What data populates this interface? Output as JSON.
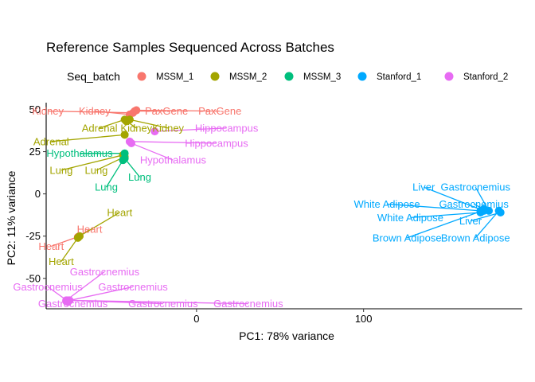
{
  "chart_data": {
    "type": "scatter",
    "title": "Reference Samples Sequenced Across Batches",
    "xlabel": "PC1: 78% variance",
    "ylabel": "PC2: 11% variance",
    "xlim": [
      -90,
      195
    ],
    "ylim": [
      -68,
      54
    ],
    "xticks": [
      0,
      100
    ],
    "yticks": [
      50,
      25,
      0,
      -25,
      -50
    ],
    "legend": {
      "title": "Seq_batch",
      "position": "top"
    },
    "grid": false,
    "series": [
      {
        "name": "MSSM_1",
        "color": "#F8766D",
        "points": [
          {
            "label": "Kidney",
            "x": -38,
            "y": 48,
            "lx": -89,
            "ly": 49
          },
          {
            "label": "Kidney",
            "x": -40,
            "y": 47,
            "lx": -61,
            "ly": 49
          },
          {
            "label": "PaxGene",
            "x": -37,
            "y": 49,
            "lx": -18,
            "ly": 49
          },
          {
            "label": "PaxGene",
            "x": -36,
            "y": 49.5,
            "lx": 14,
            "ly": 49
          },
          {
            "label": "Heart",
            "x": -70,
            "y": -25,
            "lx": -87,
            "ly": -31
          },
          {
            "label": "Heart",
            "x": -71,
            "y": -25.5,
            "lx": -64,
            "ly": -21
          }
        ]
      },
      {
        "name": "MSSM_2",
        "color": "#A3A500",
        "points": [
          {
            "label": "Adrenal",
            "x": -43,
            "y": 44,
            "lx": -58,
            "ly": 39
          },
          {
            "label": "Kidney",
            "x": -42,
            "y": 43,
            "lx": -36,
            "ly": 39
          },
          {
            "label": "Kidney",
            "x": -40,
            "y": 44,
            "lx": -17,
            "ly": 39
          },
          {
            "label": "Adrenal",
            "x": -43,
            "y": 35,
            "lx": -87,
            "ly": 31
          },
          {
            "label": "Lung",
            "x": -44,
            "y": 23,
            "lx": -81,
            "ly": 14
          },
          {
            "label": "Lung",
            "x": -43,
            "y": 22,
            "lx": -60,
            "ly": 14
          },
          {
            "label": "Heart",
            "x": -70,
            "y": -25,
            "lx": -46,
            "ly": -11
          },
          {
            "label": "Heart",
            "x": -71,
            "y": -26,
            "lx": -81,
            "ly": -40
          }
        ]
      },
      {
        "name": "MSSM_3",
        "color": "#00BF7D",
        "points": [
          {
            "label": "Hypothalamus",
            "x": -43,
            "y": 24,
            "lx": -70,
            "ly": 24
          },
          {
            "label": "Lung",
            "x": -44,
            "y": 20,
            "lx": -54,
            "ly": 4
          },
          {
            "label": "Lung",
            "x": -43,
            "y": 21,
            "lx": -34,
            "ly": 10
          }
        ]
      },
      {
        "name": "Stanford_1",
        "color": "#00A9FF",
        "points": [
          {
            "label": "Liver",
            "x": 172,
            "y": -10,
            "lx": 136,
            "ly": 4
          },
          {
            "label": "Gastrocnemius",
            "x": 175,
            "y": -10,
            "lx": 167,
            "ly": 4
          },
          {
            "label": "White Adipose",
            "x": 170,
            "y": -10,
            "lx": 114,
            "ly": -6
          },
          {
            "label": "Gastrocnemius",
            "x": 172,
            "y": -9,
            "lx": 166,
            "ly": -6
          },
          {
            "label": "White Adipose",
            "x": 170,
            "y": -11,
            "lx": 128,
            "ly": -14
          },
          {
            "label": "Liver",
            "x": 182,
            "y": -11,
            "lx": 164,
            "ly": -16
          },
          {
            "label": "Brown Adipose",
            "x": 171,
            "y": -10,
            "lx": 126,
            "ly": -26
          },
          {
            "label": "Brown Adipose",
            "x": 181,
            "y": -10,
            "lx": 167,
            "ly": -26
          }
        ]
      },
      {
        "name": "Stanford_2",
        "color": "#E76BF3",
        "points": [
          {
            "label": "Hippocampus",
            "x": -25,
            "y": 37,
            "lx": 18,
            "ly": 39
          },
          {
            "label": "Hippocampus",
            "x": -40,
            "y": 31,
            "lx": 12,
            "ly": 30
          },
          {
            "label": "Hypothalamus",
            "x": -39,
            "y": 30,
            "lx": -14,
            "ly": 20
          },
          {
            "label": "Gastrocnemius",
            "x": -78,
            "y": -63,
            "lx": -55,
            "ly": -46
          },
          {
            "label": "Gastrocnemius",
            "x": -77,
            "y": -63.5,
            "lx": -89,
            "ly": -55
          },
          {
            "label": "Gastrocnemius",
            "x": -78,
            "y": -63.5,
            "lx": -38,
            "ly": -55
          },
          {
            "label": "Gastrocnemius",
            "x": -77,
            "y": -64,
            "lx": -74,
            "ly": -65
          },
          {
            "label": "Gastrocnemius",
            "x": -76,
            "y": -63,
            "lx": -20,
            "ly": -65
          },
          {
            "label": "Gastrocnemius",
            "x": -77,
            "y": -63,
            "lx": 31,
            "ly": -65
          }
        ]
      }
    ]
  }
}
